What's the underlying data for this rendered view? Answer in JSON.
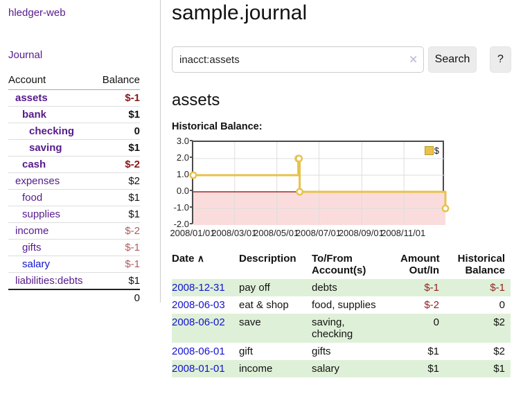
{
  "colors": {
    "accent_purple": "#551a8b",
    "link_blue": "#1112d0",
    "negative_strong": "#8b1515",
    "negative_muted": "#b05d5d",
    "register_negative": "#952020",
    "stripe_green": "#dff0d8",
    "chart_line_gold": "#e8c24a",
    "negative_region_pink": "#fbdcdc",
    "zero_line_red": "#8b0000"
  },
  "sidebar": {
    "brand": "hledger-web",
    "journal_link": "Journal",
    "accounts": {
      "col_account": "Account",
      "col_balance": "Balance",
      "rows": [
        {
          "account": "assets",
          "balance": "$-1",
          "depth": 1,
          "bold": true,
          "link": "purple"
        },
        {
          "account": "bank",
          "balance": "$1",
          "depth": 2,
          "bold": true,
          "link": "purple"
        },
        {
          "account": "checking",
          "balance": "0",
          "depth": 3,
          "bold": true,
          "link": "purple"
        },
        {
          "account": "saving",
          "balance": "$1",
          "depth": 3,
          "bold": true,
          "link": "purple"
        },
        {
          "account": "cash",
          "balance": "$-2",
          "depth": 2,
          "bold": true,
          "link": "purple"
        },
        {
          "account": "expenses",
          "balance": "$2",
          "depth": 1,
          "bold": false,
          "link": "purple"
        },
        {
          "account": "food",
          "balance": "$1",
          "depth": 2,
          "bold": false,
          "link": "purple"
        },
        {
          "account": "supplies",
          "balance": "$1",
          "depth": 2,
          "bold": false,
          "link": "purple"
        },
        {
          "account": "income",
          "balance": "$-2",
          "depth": 1,
          "bold": false,
          "link": "purple"
        },
        {
          "account": "gifts",
          "balance": "$-1",
          "depth": 2,
          "bold": false,
          "link": "purple"
        },
        {
          "account": "salary",
          "balance": "$-1",
          "depth": 2,
          "bold": false,
          "link": "blue"
        },
        {
          "account": "liabilities:debts",
          "balance": "$1",
          "depth": 1,
          "bold": false,
          "link": "purple"
        }
      ],
      "total": "0"
    }
  },
  "main": {
    "title": "sample.journal",
    "search": {
      "value": "inacct:assets",
      "clear_icon": "✕",
      "button_label": "Search",
      "help_label": "?"
    },
    "account_heading": "assets",
    "chart_label": "Historical Balance:"
  },
  "chart_data": {
    "type": "line",
    "step": true,
    "title": "Historical Balance",
    "series": [
      {
        "name": "$",
        "color": "#e8c24a",
        "points": [
          {
            "date": "2008-01-01",
            "value": 1
          },
          {
            "date": "2008-06-01",
            "value": 2
          },
          {
            "date": "2008-06-02",
            "value": 2
          },
          {
            "date": "2008-06-03",
            "value": 0
          },
          {
            "date": "2008-12-31",
            "value": -1
          }
        ]
      }
    ],
    "x_range": [
      "2008-01-01",
      "2008-12-31"
    ],
    "ylim": [
      -2,
      3
    ],
    "yticks": [
      "3.0",
      "2.0",
      "1.0",
      "0.0",
      "-1.0",
      "-2.0"
    ],
    "xticks": [
      "2008/01/01",
      "2008/03/01",
      "2008/05/01",
      "2008/07/01",
      "2008/09/01",
      "2008/11/01"
    ],
    "legend": {
      "label": "$",
      "position": "top-right"
    },
    "grid": true,
    "negative_region": true
  },
  "register": {
    "headers": {
      "date": "Date",
      "sort_icon": "∧",
      "description": "Description",
      "accounts": "To/From\nAccount(s)",
      "amount": "Amount\nOut/In",
      "balance": "Historical\nBalance"
    },
    "rows": [
      {
        "date": "2008-12-31",
        "description": "pay off",
        "accounts": "debts",
        "amount": "$-1",
        "balance": "$-1"
      },
      {
        "date": "2008-06-03",
        "description": "eat & shop",
        "accounts": "food, supplies",
        "amount": "$-2",
        "balance": "0"
      },
      {
        "date": "2008-06-02",
        "description": "save",
        "accounts": "saving,\nchecking",
        "amount": "0",
        "balance": "$2"
      },
      {
        "date": "2008-06-01",
        "description": "gift",
        "accounts": "gifts",
        "amount": "$1",
        "balance": "$2"
      },
      {
        "date": "2008-01-01",
        "description": "income",
        "accounts": "salary",
        "amount": "$1",
        "balance": "$1"
      }
    ]
  }
}
